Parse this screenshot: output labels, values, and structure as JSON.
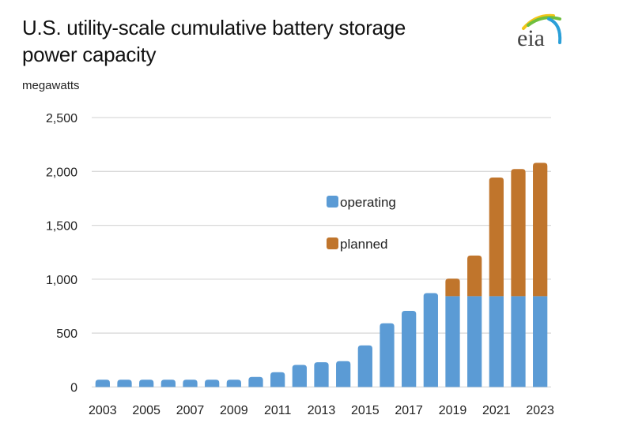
{
  "header": {
    "title_line1": "U.S. utility-scale cumulative battery storage",
    "title_line2": "power capacity",
    "units": "megawatts",
    "logo_text": "eia",
    "logo_icon": "eia-logo-icon"
  },
  "chart_data": {
    "type": "bar",
    "stacked": true,
    "title": "U.S. utility-scale cumulative battery storage power capacity",
    "xlabel": "",
    "ylabel": "megawatts",
    "ylim": [
      0,
      2500
    ],
    "yticks": [
      0,
      500,
      1000,
      1500,
      2000,
      2500
    ],
    "ytick_labels": [
      "0",
      "500",
      "1,000",
      "1,500",
      "2,000",
      "2,500"
    ],
    "grid": true,
    "legend_position": "center-right",
    "categories": [
      "2003",
      "2004",
      "2005",
      "2006",
      "2007",
      "2008",
      "2009",
      "2010",
      "2011",
      "2012",
      "2013",
      "2014",
      "2015",
      "2016",
      "2017",
      "2018",
      "2019",
      "2020",
      "2021",
      "2022",
      "2023"
    ],
    "xtick_labels": [
      "2003",
      "2005",
      "2007",
      "2009",
      "2011",
      "2013",
      "2015",
      "2017",
      "2019",
      "2021",
      "2023"
    ],
    "series": [
      {
        "name": "operating",
        "color": "#5b9bd5",
        "values": [
          68,
          68,
          68,
          68,
          68,
          68,
          68,
          93,
          137,
          205,
          230,
          240,
          386,
          591,
          706,
          871,
          843,
          843,
          843,
          843,
          843
        ]
      },
      {
        "name": "planned",
        "color": "#c0752c",
        "values": [
          0,
          0,
          0,
          0,
          0,
          0,
          0,
          0,
          0,
          0,
          0,
          0,
          0,
          0,
          0,
          0,
          163,
          377,
          1101,
          1179,
          1237
        ]
      }
    ]
  }
}
